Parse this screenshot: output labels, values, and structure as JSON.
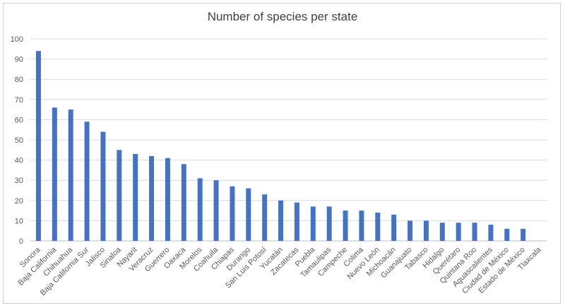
{
  "chart_data": {
    "type": "bar",
    "title": "Number of species per state",
    "xlabel": "",
    "ylabel": "",
    "ylim": [
      0,
      100
    ],
    "yticks": [
      0,
      10,
      20,
      30,
      40,
      50,
      60,
      70,
      80,
      90,
      100
    ],
    "grid": true,
    "legend": "none",
    "bar_color": "#4472C4",
    "categories": [
      "Sonora",
      "Baja California",
      "Chihuahua",
      "Baja California Sur",
      "Jalisco",
      "Sinaloa",
      "Nayarit",
      "Veracruz",
      "Guerrero",
      "Oaxaca",
      "Morelos",
      "Coahuila",
      "Chiapas",
      "Durango",
      "San Luis Potosí",
      "Yucatán",
      "Zacatecas",
      "Puebla",
      "Tamaulipas",
      "Campeche",
      "Colima",
      "Nuevo León",
      "Michoacán",
      "Guanajuato",
      "Tabasco",
      "Hidalgo",
      "Querétaro",
      "Quintana Roo",
      "Aguascalientes",
      "Ciudad de México",
      "Estado de México",
      "Tlaxcala"
    ],
    "values": [
      94,
      66,
      65,
      59,
      54,
      45,
      43,
      42,
      41,
      38,
      31,
      30,
      27,
      26,
      23,
      20,
      19,
      17,
      17,
      15,
      15,
      14,
      13,
      10,
      10,
      9,
      9,
      9,
      8,
      6,
      6,
      0
    ]
  }
}
